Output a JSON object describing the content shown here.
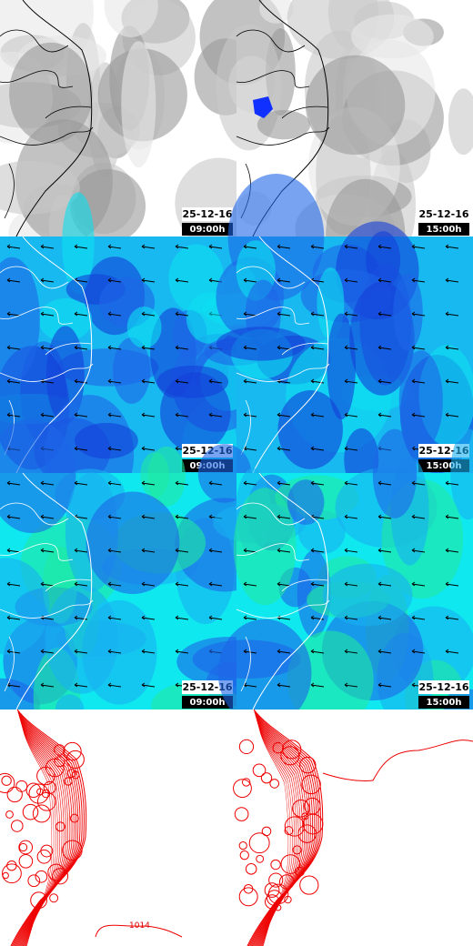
{
  "panels": [
    {
      "date": "25-12-16",
      "time": "09:00h"
    },
    {
      "date": "25-12-16",
      "time": "15:00h"
    },
    {
      "date": "25-12-16",
      "time": "09:00h"
    },
    {
      "date": "25-12-16",
      "time": "15:00h"
    },
    {
      "date": "25-12-16",
      "time": "09:00h"
    },
    {
      "date": "25-12-16",
      "time": "15:00h"
    }
  ],
  "contour_labels": [
    "1014"
  ]
}
